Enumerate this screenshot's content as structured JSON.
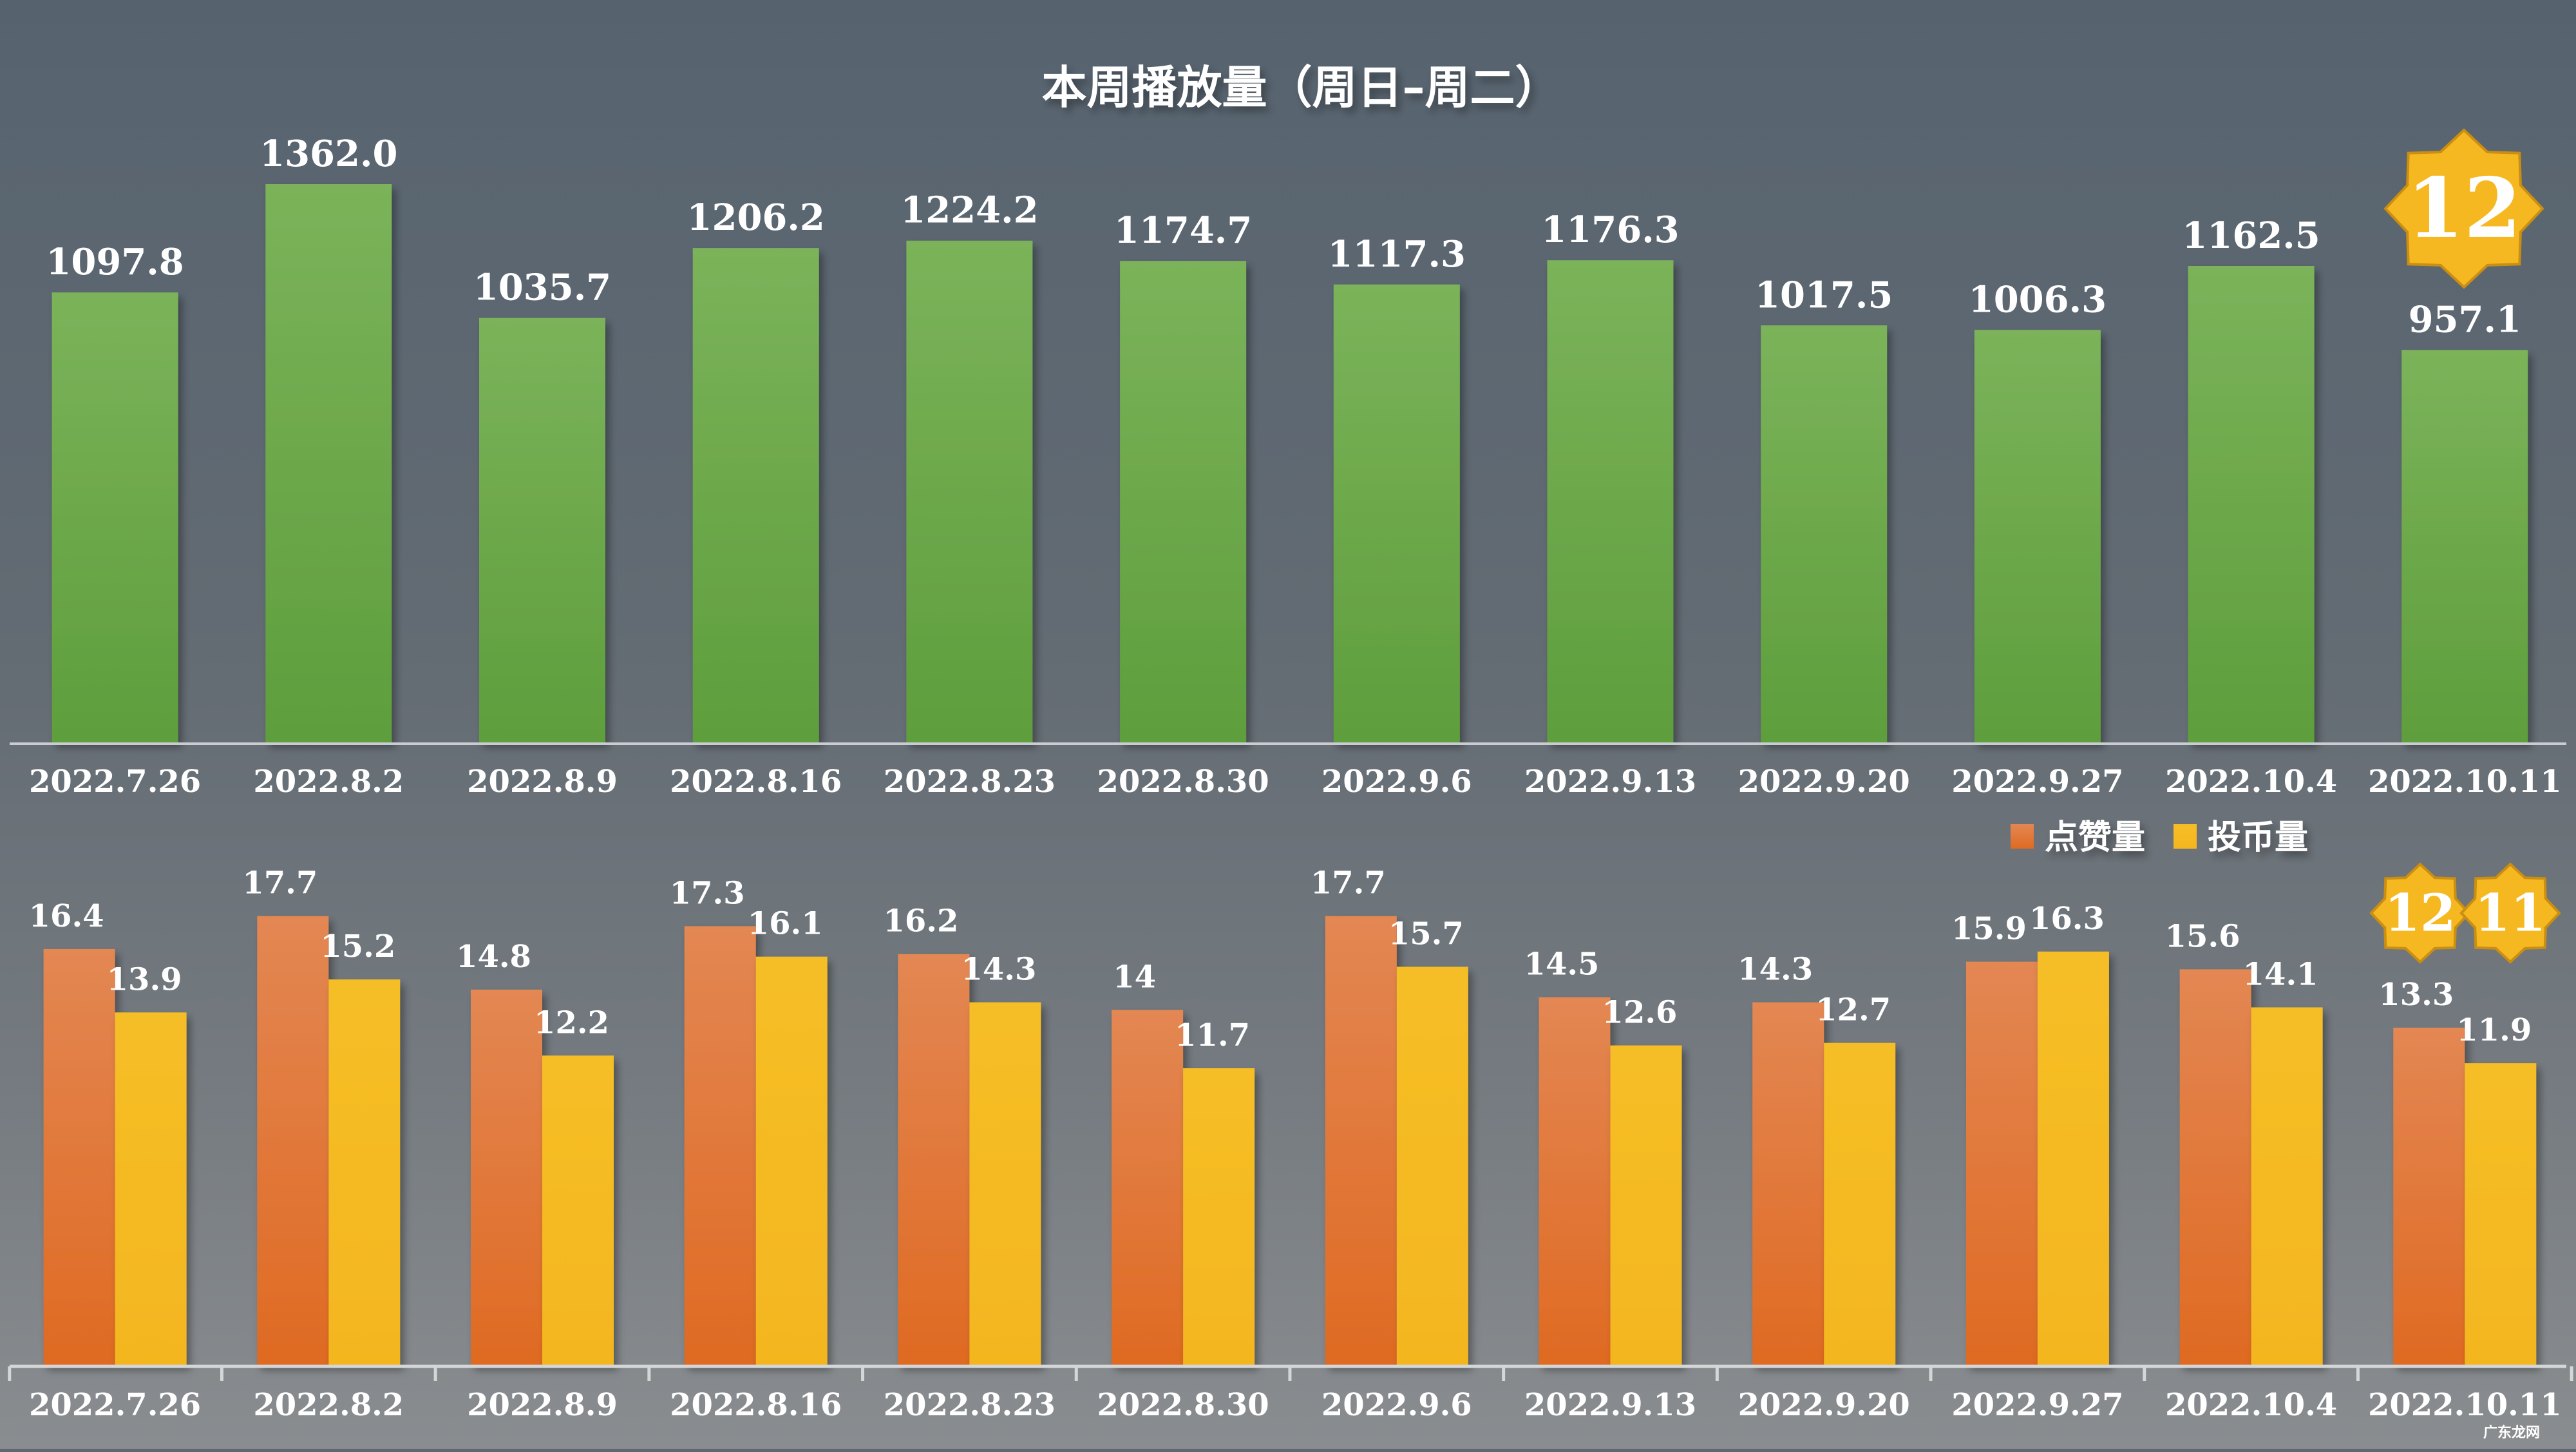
{
  "chart_data": [
    {
      "type": "bar",
      "title": "本周播放量（周日–周二）",
      "categories": [
        "2022.7.26",
        "2022.8.2",
        "2022.8.9",
        "2022.8.16",
        "2022.8.23",
        "2022.8.30",
        "2022.9.6",
        "2022.9.13",
        "2022.9.20",
        "2022.9.27",
        "2022.10.4",
        "2022.10.11"
      ],
      "values": [
        1097.8,
        1362.0,
        1035.7,
        1206.2,
        1224.2,
        1174.7,
        1117.3,
        1176.3,
        1017.5,
        1006.3,
        1162.5,
        957.1
      ],
      "value_labels": [
        "1097.8",
        "1362.0",
        "1035.7",
        "1206.2",
        "1224.2",
        "1174.7",
        "1117.3",
        "1176.3",
        "1017.5",
        "1006.3",
        "1162.5",
        "957.1"
      ],
      "ylim": [
        0,
        1362.0
      ],
      "grid": false,
      "color": "#6aa84f",
      "badges": [
        {
          "text": "12",
          "color": "#f5b820"
        }
      ]
    },
    {
      "type": "bar",
      "categories": [
        "2022.7.26",
        "2022.8.2",
        "2022.8.9",
        "2022.8.16",
        "2022.8.23",
        "2022.8.30",
        "2022.9.6",
        "2022.9.13",
        "2022.9.20",
        "2022.9.27",
        "2022.10.4",
        "2022.10.11"
      ],
      "series": [
        {
          "name": "点赞量",
          "color": "#e0712f",
          "values": [
            16.4,
            17.7,
            14.8,
            17.3,
            16.2,
            14,
            17.7,
            14.5,
            14.3,
            15.9,
            15.6,
            13.3
          ],
          "value_labels": [
            "16.4",
            "17.7",
            "14.8",
            "17.3",
            "16.2",
            "14",
            "17.7",
            "14.5",
            "14.3",
            "15.9",
            "15.6",
            "13.3"
          ]
        },
        {
          "name": "投币量",
          "color": "#f5bb22",
          "values": [
            13.9,
            15.2,
            12.2,
            16.1,
            14.3,
            11.7,
            15.7,
            12.6,
            12.7,
            16.3,
            14.1,
            11.9
          ],
          "value_labels": [
            "13.9",
            "15.2",
            "12.2",
            "16.1",
            "14.3",
            "11.7",
            "15.7",
            "12.6",
            "12.7",
            "16.3",
            "14.1",
            "11.9"
          ]
        }
      ],
      "ylim": [
        0,
        17.7
      ],
      "grid": false,
      "legend": "top-right",
      "badges": [
        {
          "text": "12",
          "color": "#f5b820"
        },
        {
          "text": "11",
          "color": "#f5b820"
        }
      ]
    }
  ],
  "watermark": "广东龙网",
  "background": "#5d6770"
}
